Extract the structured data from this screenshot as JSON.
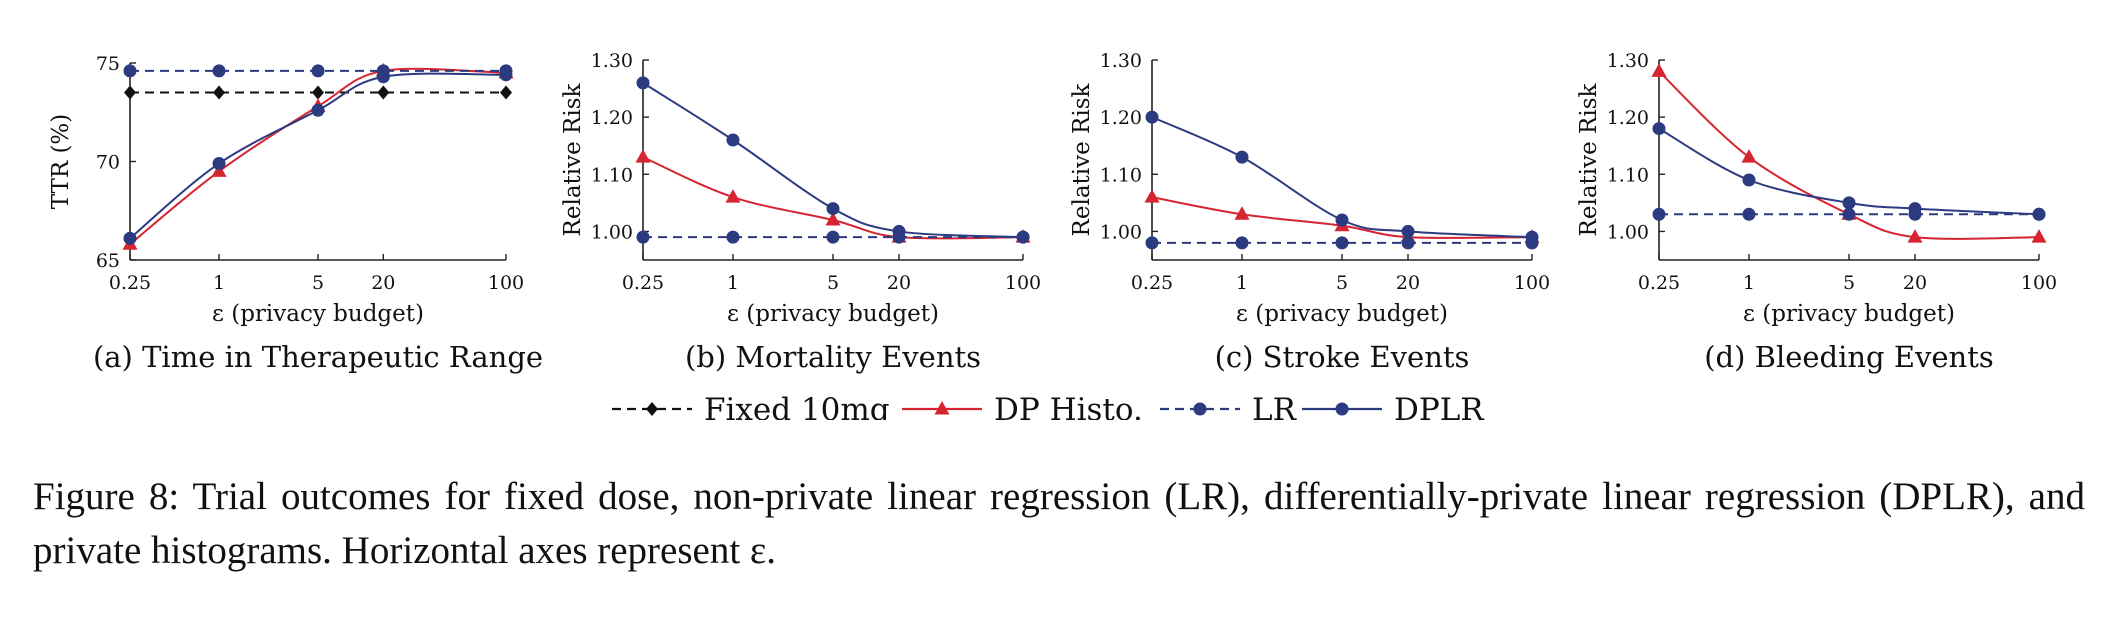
{
  "chart_data": [
    {
      "type": "line",
      "panel": "a",
      "caption": "(a) Time in Therapeutic Range",
      "xlabel": "ε (privacy budget)",
      "ylabel": "TTR (%)",
      "x": [
        "0.25",
        "1",
        "5",
        "20",
        "100"
      ],
      "ylim": [
        65,
        75
      ],
      "yticks": [
        65,
        70,
        75
      ],
      "ytick_labels": [
        "65",
        "70",
        "75"
      ],
      "series": [
        {
          "name": "Fixed 10mg",
          "values": [
            73.5,
            73.5,
            73.5,
            73.5,
            73.5
          ],
          "style": "dashed",
          "marker": "diamond",
          "color": "#111111"
        },
        {
          "name": "DP Histo.",
          "values": [
            65.8,
            69.5,
            72.8,
            74.6,
            74.5
          ],
          "style": "solid",
          "marker": "triangle",
          "color": "#d62430"
        },
        {
          "name": "LR",
          "values": [
            74.6,
            74.6,
            74.6,
            74.6,
            74.6
          ],
          "style": "dashed",
          "marker": "circle",
          "color": "#2c3a80"
        },
        {
          "name": "DPLR",
          "values": [
            66.1,
            69.9,
            72.6,
            74.3,
            74.4
          ],
          "style": "solid",
          "marker": "circle",
          "color": "#2c3a80"
        }
      ]
    },
    {
      "type": "line",
      "panel": "b",
      "caption": "(b) Mortality Events",
      "xlabel": "ε (privacy budget)",
      "ylabel": "Relative Risk",
      "x": [
        "0.25",
        "1",
        "5",
        "20",
        "100"
      ],
      "ylim": [
        0.95,
        1.3
      ],
      "yticks": [
        1.0,
        1.1,
        1.2,
        1.3
      ],
      "ytick_labels": [
        "1.00",
        "1.10",
        "1.20",
        "1.30"
      ],
      "series": [
        {
          "name": "DP Histo.",
          "values": [
            1.13,
            1.06,
            1.02,
            0.99,
            0.99
          ],
          "style": "solid",
          "marker": "triangle",
          "color": "#d62430"
        },
        {
          "name": "LR",
          "values": [
            0.99,
            0.99,
            0.99,
            0.99,
            0.99
          ],
          "style": "dashed",
          "marker": "circle",
          "color": "#2c3a80"
        },
        {
          "name": "DPLR",
          "values": [
            1.26,
            1.16,
            1.04,
            1.0,
            0.99
          ],
          "style": "solid",
          "marker": "circle",
          "color": "#2c3a80"
        }
      ]
    },
    {
      "type": "line",
      "panel": "c",
      "caption": "(c) Stroke Events",
      "xlabel": "ε (privacy budget)",
      "ylabel": "Relative Risk",
      "x": [
        "0.25",
        "1",
        "5",
        "20",
        "100"
      ],
      "ylim": [
        0.95,
        1.3
      ],
      "yticks": [
        1.0,
        1.1,
        1.2,
        1.3
      ],
      "ytick_labels": [
        "1.00",
        "1.10",
        "1.20",
        "1.30"
      ],
      "series": [
        {
          "name": "DP Histo.",
          "values": [
            1.06,
            1.03,
            1.01,
            0.99,
            0.99
          ],
          "style": "solid",
          "marker": "triangle",
          "color": "#d62430"
        },
        {
          "name": "LR",
          "values": [
            0.98,
            0.98,
            0.98,
            0.98,
            0.98
          ],
          "style": "dashed",
          "marker": "circle",
          "color": "#2c3a80"
        },
        {
          "name": "DPLR",
          "values": [
            1.2,
            1.13,
            1.02,
            1.0,
            0.99
          ],
          "style": "solid",
          "marker": "circle",
          "color": "#2c3a80"
        }
      ]
    },
    {
      "type": "line",
      "panel": "d",
      "caption": "(d) Bleeding Events",
      "xlabel": "ε (privacy budget)",
      "ylabel": "Relative Risk",
      "x": [
        "0.25",
        "1",
        "5",
        "20",
        "100"
      ],
      "ylim": [
        0.95,
        1.3
      ],
      "yticks": [
        1.0,
        1.1,
        1.2,
        1.3
      ],
      "ytick_labels": [
        "1.00",
        "1.10",
        "1.20",
        "1.30"
      ],
      "series": [
        {
          "name": "DP Histo.",
          "values": [
            1.28,
            1.13,
            1.03,
            0.99,
            0.99
          ],
          "style": "solid",
          "marker": "triangle",
          "color": "#d62430"
        },
        {
          "name": "LR",
          "values": [
            1.03,
            1.03,
            1.03,
            1.03,
            1.03
          ],
          "style": "dashed",
          "marker": "circle",
          "color": "#2c3a80"
        },
        {
          "name": "DPLR",
          "values": [
            1.18,
            1.09,
            1.05,
            1.04,
            1.03
          ],
          "style": "solid",
          "marker": "circle",
          "color": "#2c3a80"
        }
      ]
    }
  ],
  "legend": {
    "position": "bottom-center",
    "entries": [
      {
        "label": "Fixed 10mg",
        "style": "dashed",
        "marker": "diamond",
        "color": "#111111"
      },
      {
        "label": "DP Histo.",
        "style": "solid",
        "marker": "triangle",
        "color": "#d62430"
      },
      {
        "label": "LR",
        "style": "dashed",
        "marker": "circle",
        "color": "#2c3a80"
      },
      {
        "label": "DPLR",
        "style": "solid",
        "marker": "circle",
        "color": "#2c3a80"
      }
    ]
  },
  "caption": "Figure 8: Trial outcomes for fixed dose, non-private linear regression (LR), differentially-private linear regression (DPLR), and private histograms. Horizontal axes represent ε."
}
